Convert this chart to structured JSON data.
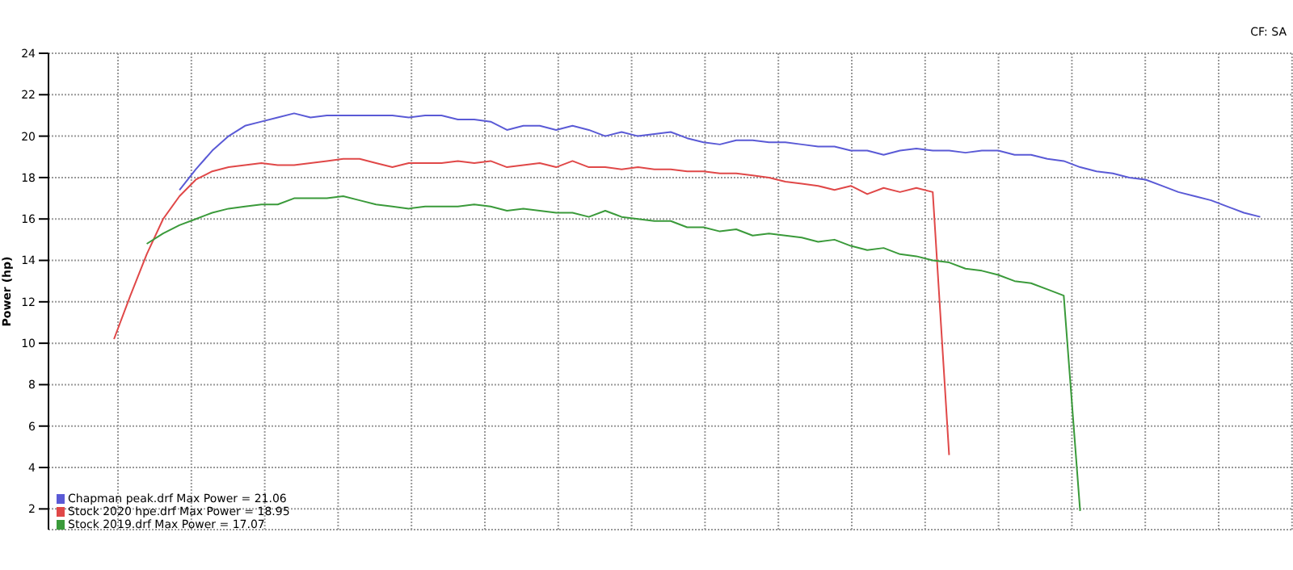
{
  "chart_data": {
    "type": "line",
    "ylabel": "Power (hp)",
    "annotations": [
      "CF: SA"
    ],
    "categories": [
      null,
      null,
      null,
      null,
      null,
      null,
      null,
      null,
      null,
      null,
      null,
      null,
      null,
      null,
      null,
      null,
      null,
      null,
      null,
      null,
      null,
      null,
      null,
      null,
      null,
      null,
      null,
      null,
      null,
      null,
      null,
      null,
      null,
      null,
      null,
      null,
      null,
      null,
      null,
      null,
      null,
      null,
      null,
      null,
      null,
      null,
      null,
      null,
      null,
      null,
      null,
      null,
      null,
      null,
      null,
      null,
      null,
      null,
      null,
      null,
      null,
      null,
      null,
      null,
      null,
      null,
      null,
      null,
      null,
      null,
      null,
      null,
      null,
      null,
      null,
      null,
      null
    ],
    "series": [
      {
        "name": "Chapman peak.drf Max Power = 21.06",
        "color": "#5a5ad6",
        "values": [
          null,
          null,
          null,
          null,
          null,
          null,
          null,
          null,
          17.4,
          18.4,
          19.3,
          20.0,
          20.5,
          20.7,
          20.9,
          21.1,
          20.9,
          21.0,
          21.0,
          21.0,
          21.0,
          21.0,
          20.9,
          21.0,
          21.0,
          20.8,
          20.8,
          20.7,
          20.3,
          20.5,
          20.5,
          20.3,
          20.5,
          20.3,
          20.0,
          20.2,
          20.0,
          20.1,
          20.2,
          19.9,
          19.7,
          19.6,
          19.8,
          19.8,
          19.7,
          19.7,
          19.6,
          19.5,
          19.5,
          19.3,
          19.3,
          19.1,
          19.3,
          19.4,
          19.3,
          19.3,
          19.2,
          19.3,
          19.3,
          19.1,
          19.1,
          18.9,
          18.8,
          18.5,
          18.3,
          18.2,
          18.0,
          17.9,
          17.6,
          17.3,
          17.1,
          16.9,
          16.6,
          16.3,
          16.1,
          null,
          null
        ]
      },
      {
        "name": "Stock 2020 hpe.drf Max Power = 18.95",
        "color": "#e04848",
        "values": [
          null,
          null,
          null,
          null,
          10.2,
          12.3,
          14.3,
          16.0,
          17.1,
          17.9,
          18.3,
          18.5,
          18.6,
          18.7,
          18.6,
          18.6,
          18.7,
          18.8,
          18.9,
          18.9,
          18.7,
          18.5,
          18.7,
          18.7,
          18.7,
          18.8,
          18.7,
          18.8,
          18.5,
          18.6,
          18.7,
          18.5,
          18.8,
          18.5,
          18.5,
          18.4,
          18.5,
          18.4,
          18.4,
          18.3,
          18.3,
          18.2,
          18.2,
          18.1,
          18.0,
          17.8,
          17.7,
          17.6,
          17.4,
          17.6,
          17.2,
          17.5,
          17.3,
          17.5,
          17.3,
          4.6,
          null,
          null,
          null,
          null,
          null,
          null,
          null,
          null,
          null,
          null,
          null,
          null,
          null,
          null,
          null,
          null,
          null,
          null,
          null,
          null,
          null
        ]
      },
      {
        "name": "Stock 2019.drf Max Power = 17.07",
        "color": "#3a9a3a",
        "values": [
          null,
          null,
          null,
          null,
          null,
          null,
          14.8,
          15.3,
          15.7,
          16.0,
          16.3,
          16.5,
          16.6,
          16.7,
          16.7,
          17.0,
          17.0,
          17.0,
          17.1,
          16.9,
          16.7,
          16.6,
          16.5,
          16.6,
          16.6,
          16.6,
          16.7,
          16.6,
          16.4,
          16.5,
          16.4,
          16.3,
          16.3,
          16.1,
          16.4,
          16.1,
          16.0,
          15.9,
          15.9,
          15.6,
          15.6,
          15.4,
          15.5,
          15.2,
          15.3,
          15.2,
          15.1,
          14.9,
          15.0,
          14.7,
          14.5,
          14.6,
          14.3,
          14.2,
          14.0,
          13.9,
          13.6,
          13.5,
          13.3,
          13.0,
          12.9,
          12.6,
          12.3,
          1.9,
          null,
          null,
          null,
          null,
          null,
          null,
          null,
          null,
          null,
          null,
          null,
          null,
          null
        ]
      }
    ],
    "ylim": [
      1,
      24
    ],
    "yticks": [
      2,
      4,
      6,
      8,
      10,
      12,
      14,
      16,
      18,
      20,
      22,
      24
    ],
    "grid": true,
    "legend": "bottom left",
    "tick_labels": "y",
    "marker": "none",
    "line_style": "solid"
  }
}
